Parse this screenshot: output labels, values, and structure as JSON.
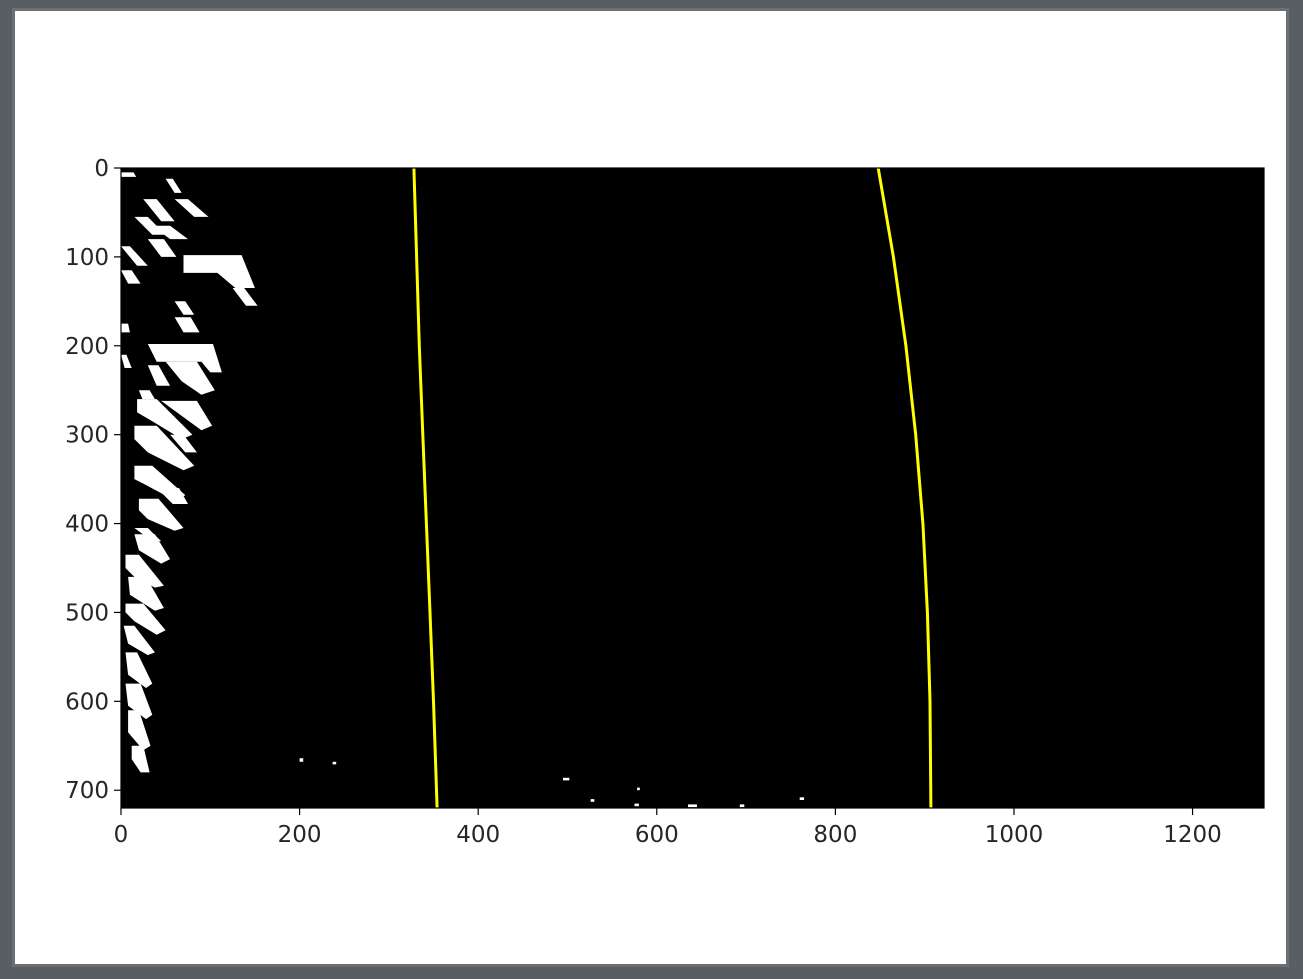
{
  "chart_data": {
    "type": "image",
    "title": "",
    "xlabel": "",
    "ylabel": "",
    "xlim": [
      0,
      1280
    ],
    "ylim": [
      720,
      0
    ],
    "xticks": [
      0,
      200,
      400,
      600,
      800,
      1000,
      1200
    ],
    "yticks": [
      0,
      100,
      200,
      300,
      400,
      500,
      600,
      700
    ],
    "xtick_labels": [
      "0",
      "200",
      "400",
      "600",
      "800",
      "1000",
      "1200"
    ],
    "ytick_labels": [
      "0",
      "100",
      "200",
      "300",
      "400",
      "500",
      "600",
      "700"
    ],
    "background_color": "#000000",
    "pixel_color": "#ffffff",
    "series": [
      {
        "color": "#ffff00",
        "points": [
          [
            328,
            0
          ],
          [
            331,
            100
          ],
          [
            334,
            200
          ],
          [
            338,
            300
          ],
          [
            342,
            400
          ],
          [
            346,
            500
          ],
          [
            350,
            600
          ],
          [
            354,
            720
          ]
        ]
      },
      {
        "color": "#ffff00",
        "points": [
          [
            848,
            0
          ],
          [
            865,
            100
          ],
          [
            879,
            200
          ],
          [
            890,
            300
          ],
          [
            898,
            400
          ],
          [
            903,
            500
          ],
          [
            906,
            600
          ],
          [
            907,
            720
          ]
        ]
      }
    ],
    "binary_blobs": [
      [
        [
          0,
          5
        ],
        [
          14,
          5
        ],
        [
          17,
          10
        ],
        [
          0,
          10
        ]
      ],
      [
        [
          50,
          12
        ],
        [
          58,
          12
        ],
        [
          68,
          28
        ],
        [
          60,
          28
        ]
      ],
      [
        [
          25,
          35
        ],
        [
          40,
          35
        ],
        [
          60,
          60
        ],
        [
          45,
          60
        ]
      ],
      [
        [
          60,
          35
        ],
        [
          75,
          35
        ],
        [
          98,
          55
        ],
        [
          82,
          55
        ]
      ],
      [
        [
          15,
          55
        ],
        [
          30,
          55
        ],
        [
          50,
          75
        ],
        [
          35,
          75
        ]
      ],
      [
        [
          35,
          65
        ],
        [
          55,
          65
        ],
        [
          75,
          80
        ],
        [
          55,
          80
        ]
      ],
      [
        [
          0,
          88
        ],
        [
          10,
          88
        ],
        [
          30,
          110
        ],
        [
          18,
          110
        ]
      ],
      [
        [
          30,
          80
        ],
        [
          48,
          80
        ],
        [
          62,
          100
        ],
        [
          45,
          100
        ]
      ],
      [
        [
          70,
          98
        ],
        [
          135,
          98
        ],
        [
          150,
          135
        ],
        [
          128,
          135
        ],
        [
          108,
          118
        ],
        [
          70,
          118
        ]
      ],
      [
        [
          0,
          115
        ],
        [
          12,
          115
        ],
        [
          22,
          130
        ],
        [
          8,
          130
        ]
      ],
      [
        [
          125,
          135
        ],
        [
          138,
          135
        ],
        [
          153,
          155
        ],
        [
          140,
          155
        ]
      ],
      [
        [
          60,
          150
        ],
        [
          72,
          150
        ],
        [
          82,
          165
        ],
        [
          70,
          165
        ]
      ],
      [
        [
          60,
          168
        ],
        [
          78,
          168
        ],
        [
          88,
          185
        ],
        [
          70,
          185
        ]
      ],
      [
        [
          0,
          175
        ],
        [
          8,
          175
        ],
        [
          10,
          185
        ],
        [
          0,
          185
        ]
      ],
      [
        [
          30,
          198
        ],
        [
          103,
          198
        ],
        [
          113,
          230
        ],
        [
          100,
          230
        ],
        [
          90,
          218
        ],
        [
          40,
          218
        ]
      ],
      [
        [
          0,
          210
        ],
        [
          6,
          210
        ],
        [
          12,
          225
        ],
        [
          4,
          225
        ]
      ],
      [
        [
          30,
          222
        ],
        [
          42,
          222
        ],
        [
          55,
          245
        ],
        [
          40,
          245
        ]
      ],
      [
        [
          50,
          218
        ],
        [
          85,
          218
        ],
        [
          105,
          250
        ],
        [
          90,
          255
        ],
        [
          68,
          240
        ]
      ],
      [
        [
          20,
          250
        ],
        [
          32,
          250
        ],
        [
          38,
          260
        ],
        [
          24,
          260
        ]
      ],
      [
        [
          18,
          260
        ],
        [
          40,
          260
        ],
        [
          80,
          300
        ],
        [
          68,
          305
        ],
        [
          35,
          285
        ],
        [
          18,
          275
        ]
      ],
      [
        [
          45,
          262
        ],
        [
          85,
          262
        ],
        [
          102,
          290
        ],
        [
          90,
          295
        ]
      ],
      [
        [
          15,
          290
        ],
        [
          40,
          290
        ],
        [
          82,
          335
        ],
        [
          70,
          340
        ],
        [
          30,
          320
        ],
        [
          15,
          305
        ]
      ],
      [
        [
          55,
          300
        ],
        [
          70,
          300
        ],
        [
          85,
          320
        ],
        [
          72,
          320
        ]
      ],
      [
        [
          15,
          335
        ],
        [
          35,
          335
        ],
        [
          72,
          368
        ],
        [
          62,
          375
        ],
        [
          25,
          355
        ],
        [
          15,
          350
        ]
      ],
      [
        [
          40,
          360
        ],
        [
          65,
          360
        ],
        [
          75,
          378
        ],
        [
          58,
          378
        ]
      ],
      [
        [
          20,
          372
        ],
        [
          42,
          372
        ],
        [
          70,
          405
        ],
        [
          60,
          408
        ],
        [
          30,
          395
        ],
        [
          20,
          385
        ]
      ],
      [
        [
          15,
          405
        ],
        [
          30,
          405
        ],
        [
          45,
          420
        ],
        [
          35,
          420
        ]
      ],
      [
        [
          15,
          412
        ],
        [
          38,
          412
        ],
        [
          55,
          440
        ],
        [
          45,
          445
        ],
        [
          20,
          430
        ]
      ],
      [
        [
          5,
          435
        ],
        [
          20,
          435
        ],
        [
          48,
          470
        ],
        [
          38,
          472
        ],
        [
          15,
          460
        ],
        [
          5,
          450
        ]
      ],
      [
        [
          8,
          460
        ],
        [
          28,
          460
        ],
        [
          48,
          495
        ],
        [
          38,
          498
        ],
        [
          10,
          480
        ]
      ],
      [
        [
          5,
          490
        ],
        [
          25,
          490
        ],
        [
          50,
          520
        ],
        [
          40,
          525
        ],
        [
          15,
          510
        ],
        [
          5,
          500
        ]
      ],
      [
        [
          3,
          515
        ],
        [
          15,
          515
        ],
        [
          38,
          545
        ],
        [
          30,
          548
        ],
        [
          8,
          535
        ]
      ],
      [
        [
          5,
          545
        ],
        [
          18,
          545
        ],
        [
          35,
          580
        ],
        [
          28,
          585
        ],
        [
          8,
          570
        ]
      ],
      [
        [
          5,
          580
        ],
        [
          22,
          580
        ],
        [
          35,
          615
        ],
        [
          28,
          620
        ],
        [
          8,
          605
        ]
      ],
      [
        [
          8,
          610
        ],
        [
          20,
          610
        ],
        [
          33,
          650
        ],
        [
          25,
          655
        ],
        [
          8,
          635
        ]
      ],
      [
        [
          12,
          650
        ],
        [
          25,
          650
        ],
        [
          32,
          680
        ],
        [
          22,
          680
        ],
        [
          12,
          665
        ]
      ],
      [
        [
          200,
          664
        ],
        [
          204,
          664
        ],
        [
          204,
          668
        ],
        [
          200,
          668
        ]
      ],
      [
        [
          237,
          668
        ],
        [
          241,
          668
        ],
        [
          241,
          671
        ],
        [
          237,
          671
        ]
      ],
      [
        [
          495,
          686
        ],
        [
          502,
          686
        ],
        [
          502,
          689
        ],
        [
          495,
          689
        ]
      ],
      [
        [
          578,
          697
        ],
        [
          581,
          697
        ],
        [
          581,
          700
        ],
        [
          578,
          700
        ]
      ],
      [
        [
          526,
          710
        ],
        [
          530,
          710
        ],
        [
          530,
          713
        ],
        [
          526,
          713
        ]
      ],
      [
        [
          575,
          715
        ],
        [
          580,
          715
        ],
        [
          580,
          718
        ],
        [
          575,
          718
        ]
      ],
      [
        [
          635,
          716
        ],
        [
          645,
          716
        ],
        [
          645,
          719
        ],
        [
          635,
          719
        ]
      ],
      [
        [
          693,
          716
        ],
        [
          698,
          716
        ],
        [
          698,
          719
        ],
        [
          693,
          719
        ]
      ],
      [
        [
          760,
          708
        ],
        [
          765,
          708
        ],
        [
          765,
          711
        ],
        [
          760,
          711
        ]
      ]
    ]
  }
}
